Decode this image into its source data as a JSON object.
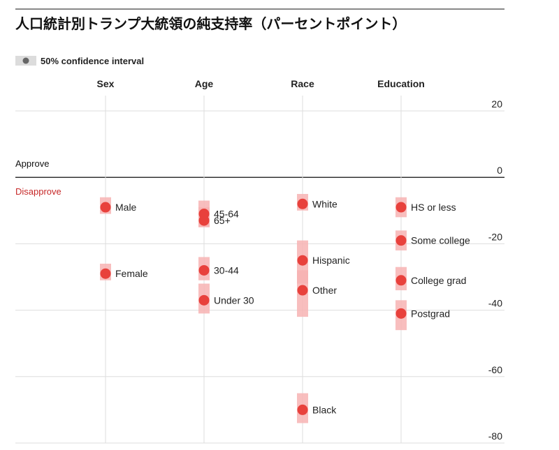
{
  "chart_data": {
    "type": "scatter",
    "title": "人口統計別トランプ大統領の純支持率（パーセントポイント）",
    "legend": {
      "label": "50% confidence interval",
      "placement": "top-left"
    },
    "approve_label": "Approve",
    "disapprove_label": "Disapprove",
    "ylim": [
      -80,
      20
    ],
    "yticks": [
      20,
      0,
      -20,
      -40,
      -60,
      -80
    ],
    "grid": true,
    "colors": {
      "point": "#e8413c",
      "interval": "#f7b3b3",
      "grid": "#dddddd",
      "zero_line": "#333333",
      "disapprove": "#c62828"
    },
    "groups": [
      {
        "name": "Sex",
        "points": [
          {
            "label": "Male",
            "value": -9,
            "low": -11,
            "high": -6
          },
          {
            "label": "Female",
            "value": -29,
            "low": -31,
            "high": -26
          }
        ]
      },
      {
        "name": "Age",
        "points": [
          {
            "label": "45-64",
            "value": -11,
            "low": -15,
            "high": -7
          },
          {
            "label": "65+",
            "value": -13,
            "low": -15,
            "high": -9
          },
          {
            "label": "30-44",
            "value": -28,
            "low": -31,
            "high": -24
          },
          {
            "label": "Under 30",
            "value": -37,
            "low": -41,
            "high": -32
          }
        ]
      },
      {
        "name": "Race",
        "points": [
          {
            "label": "White",
            "value": -8,
            "low": -10,
            "high": -5
          },
          {
            "label": "Hispanic",
            "value": -25,
            "low": -32,
            "high": -19
          },
          {
            "label": "Other",
            "value": -34,
            "low": -42,
            "high": -28
          },
          {
            "label": "Black",
            "value": -70,
            "low": -74,
            "high": -65
          }
        ]
      },
      {
        "name": "Education",
        "points": [
          {
            "label": "HS or less",
            "value": -9,
            "low": -12,
            "high": -6
          },
          {
            "label": "Some college",
            "value": -19,
            "low": -22,
            "high": -16
          },
          {
            "label": "College grad",
            "value": -31,
            "low": -34,
            "high": -27
          },
          {
            "label": "Postgrad",
            "value": -41,
            "low": -46,
            "high": -37
          }
        ]
      }
    ]
  }
}
